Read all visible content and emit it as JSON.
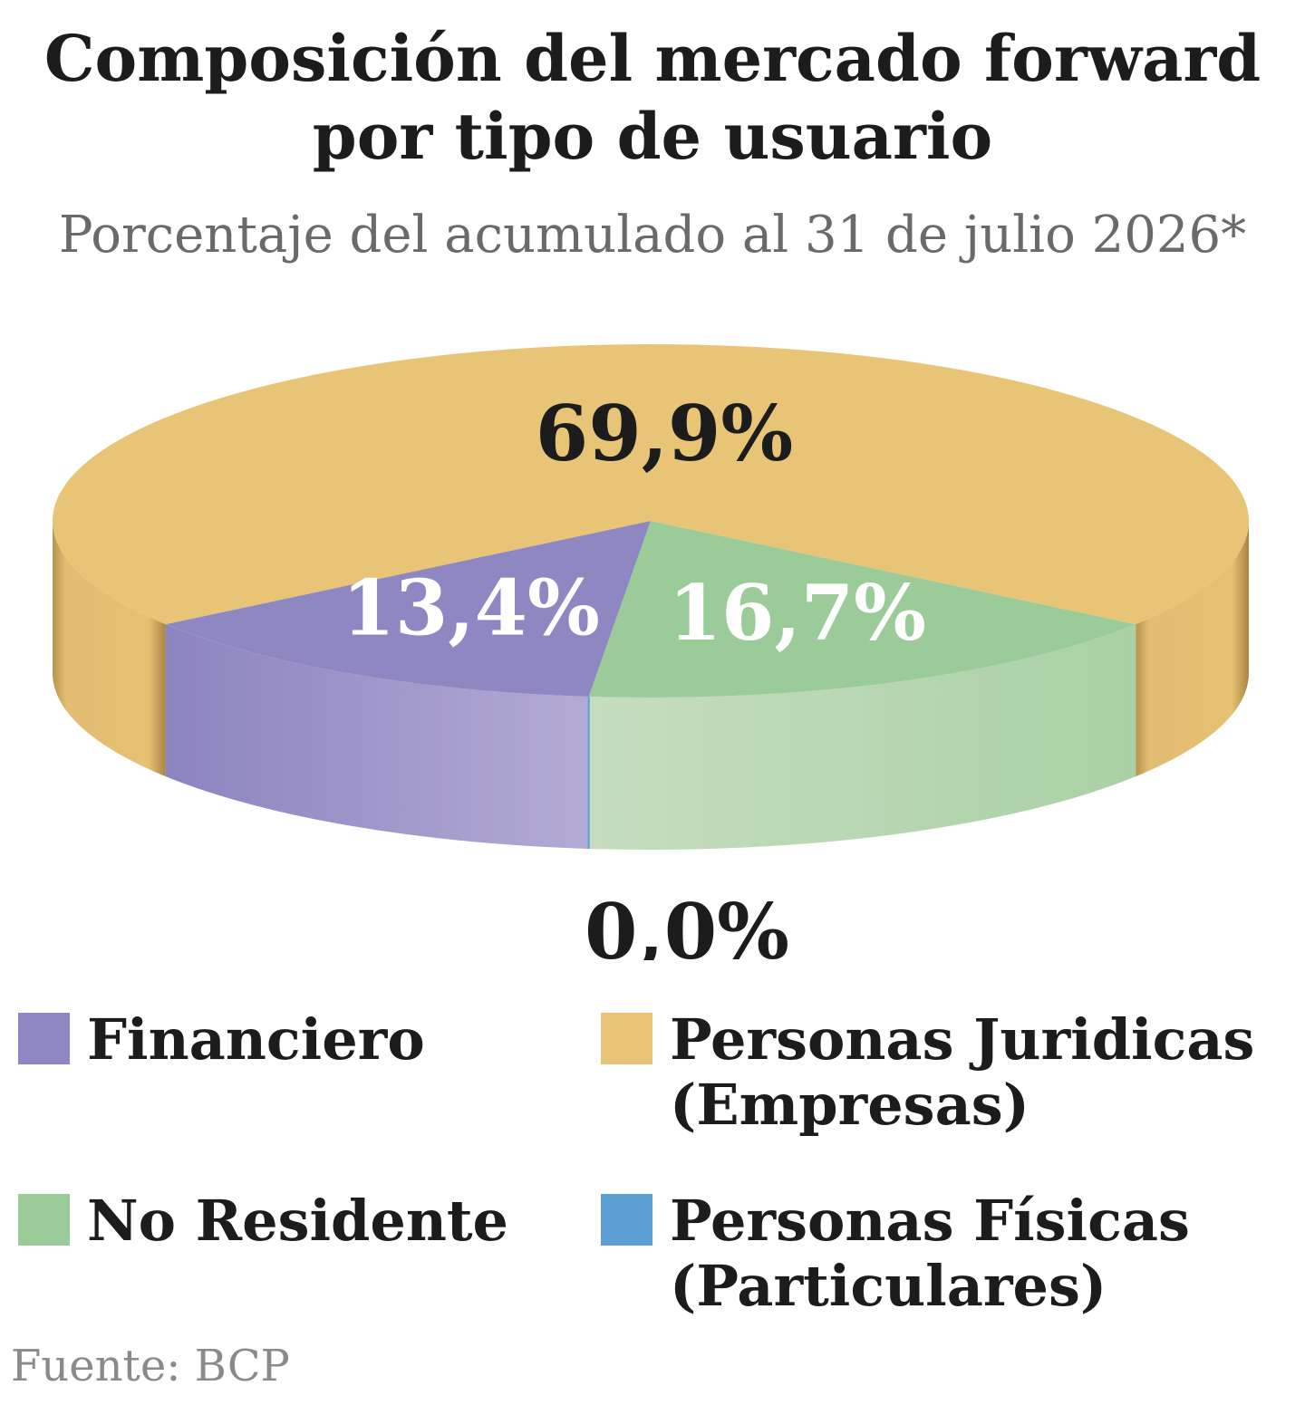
{
  "header": {
    "title_line1": "Composición del mercado forward",
    "title_line2": "por tipo de usuario",
    "subtitle": "Porcentaje del acumulado al 31 de julio 2026*"
  },
  "chart_data": {
    "type": "pie",
    "style": "3d",
    "title": "Composición del mercado forward por tipo de usuario",
    "subtitle": "Porcentaje del acumulado al 31 de julio 2026*",
    "unit": "%",
    "slices": [
      {
        "name": "Personas Juridicas (Empresas)",
        "value": 69.9,
        "label": "69,9%",
        "color": "#e8c476"
      },
      {
        "name": "No Residente",
        "value": 16.7,
        "label": "16,7%",
        "color": "#9ccb9a"
      },
      {
        "name": "Personas Físicas (Particulares)",
        "value": 0.0,
        "label": "0,0%",
        "color": "#5b9fd3"
      },
      {
        "name": "Financiero",
        "value": 13.4,
        "label": "13,4%",
        "color": "#8f87c2"
      }
    ]
  },
  "legend": [
    {
      "line1": "Financiero",
      "line2": "",
      "color": "#8f87c2"
    },
    {
      "line1": "Personas Juridicas",
      "line2": "(Empresas)",
      "color": "#e8c476"
    },
    {
      "line1": "No Residente",
      "line2": "",
      "color": "#9ccb9a"
    },
    {
      "line1": "Personas Físicas",
      "line2": "(Particulares)",
      "color": "#5b9fd3"
    }
  ],
  "source": "Fuente: BCP"
}
